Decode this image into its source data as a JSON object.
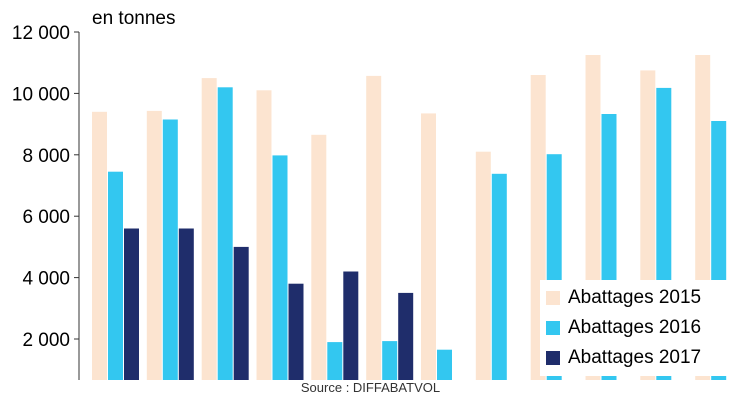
{
  "chart_data": {
    "type": "bar",
    "unit_label": "en tonnes",
    "source": "Source : DIFFABATVOL",
    "categories": [
      "",
      "",
      "",
      "",
      "",
      "",
      "",
      "",
      "",
      "",
      "",
      ""
    ],
    "ylim": [
      1000,
      12000
    ],
    "y_ticks": [
      "2 000",
      "4 000",
      "6 000",
      "8 000",
      "10 000",
      "12 000"
    ],
    "y_tick_values": [
      2000,
      4000,
      6000,
      8000,
      10000,
      12000
    ],
    "grid": false,
    "legend_position": "bottom-right",
    "series": [
      {
        "name": "Abattages 2015",
        "color": "#FCE4D0",
        "values": [
          9400,
          9430,
          10500,
          10100,
          8650,
          10570,
          9350,
          8100,
          10600,
          11250,
          10750,
          11250
        ]
      },
      {
        "name": "Abattages 2016",
        "color": "#33C7F0",
        "values": [
          7450,
          9150,
          10200,
          7980,
          1900,
          1930,
          1650,
          7380,
          8020,
          9330,
          10180,
          9100
        ]
      },
      {
        "name": "Abattages 2017",
        "color": "#1F2D6B",
        "values": [
          5600,
          5600,
          5000,
          3800,
          4200,
          3500,
          null,
          null,
          null,
          null,
          null,
          null
        ]
      }
    ]
  }
}
